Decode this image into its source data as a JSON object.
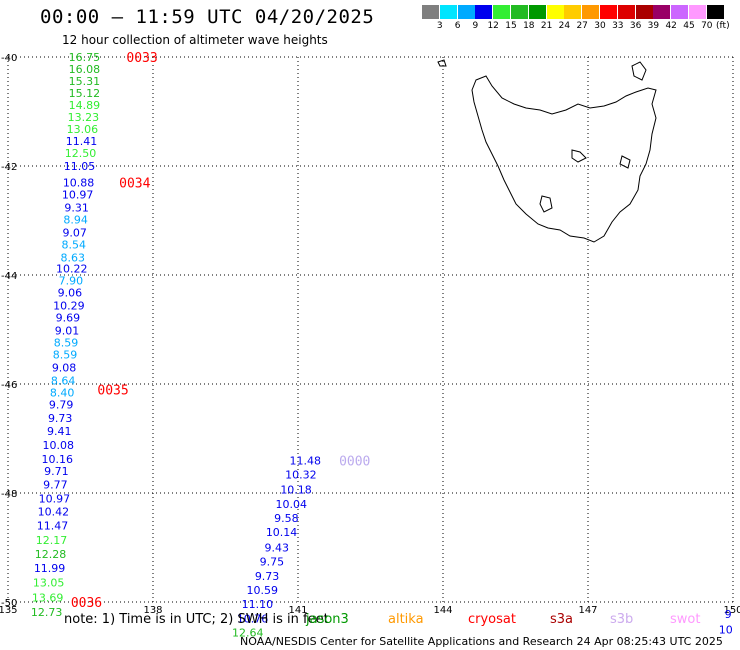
{
  "title": "00:00 – 11:59 UTC 04/20/2025",
  "subtitle": "12 hour collection of altimeter wave heights",
  "colorbar": {
    "unit": "(ft)",
    "ticks": [
      "3",
      "6",
      "9",
      "12",
      "15",
      "18",
      "21",
      "24",
      "27",
      "30",
      "33",
      "36",
      "39",
      "42",
      "45",
      "70"
    ],
    "colors": [
      "#7f7f7f",
      "#00e5ff",
      "#00aaff",
      "#0000ee",
      "#33ee33",
      "#22bb22",
      "#009900",
      "#ffff00",
      "#ffcc00",
      "#ff9900",
      "#ff0000",
      "#dd0000",
      "#aa0000",
      "#990066",
      "#cc66ff",
      "#ff99ff",
      "#000000"
    ]
  },
  "map": {
    "lat_labels": [
      "-40",
      "-42",
      "-44",
      "-46",
      "-48",
      "-50"
    ],
    "lon_labels": [
      "135",
      "138",
      "141",
      "144",
      "147",
      "150"
    ],
    "grid": "dotted",
    "lon_range": [
      135,
      150
    ],
    "lat_range": [
      -50,
      -40
    ]
  },
  "tracks": [
    {
      "passes": [
        {
          "label": "0033",
          "color": "#ff0000",
          "lon": 137.45,
          "lat": -40.0
        },
        {
          "label": "0034",
          "color": "#ff0000",
          "lon": 137.3,
          "lat": -42.3
        },
        {
          "label": "0035",
          "color": "#ff0000",
          "lon": 136.85,
          "lat": -46.1
        },
        {
          "label": "0036",
          "color": "#ff0000",
          "lon": 136.3,
          "lat": -50.0
        }
      ],
      "points": [
        {
          "v": "16.75",
          "c": "#22bb22",
          "lon": 136.58,
          "lat": -40.0
        },
        {
          "v": "16.08",
          "c": "#22bb22",
          "lon": 136.58,
          "lat": -40.22
        },
        {
          "v": "15.31",
          "c": "#22bb22",
          "lon": 136.58,
          "lat": -40.44
        },
        {
          "v": "15.12",
          "c": "#22bb22",
          "lon": 136.58,
          "lat": -40.66
        },
        {
          "v": "14.89",
          "c": "#33ee33",
          "lon": 136.58,
          "lat": -40.88
        },
        {
          "v": "13.23",
          "c": "#33ee33",
          "lon": 136.56,
          "lat": -41.1
        },
        {
          "v": "13.06",
          "c": "#33ee33",
          "lon": 136.54,
          "lat": -41.32
        },
        {
          "v": "11.41",
          "c": "#0000ee",
          "lon": 136.52,
          "lat": -41.54
        },
        {
          "v": "12.50",
          "c": "#33ee33",
          "lon": 136.5,
          "lat": -41.76
        },
        {
          "v": "11.05",
          "c": "#0000ee",
          "lon": 136.48,
          "lat": -42.0
        },
        {
          "v": "10.88",
          "c": "#0000ee",
          "lon": 136.46,
          "lat": -42.3
        },
        {
          "v": "10.97",
          "c": "#0000ee",
          "lon": 136.44,
          "lat": -42.52
        },
        {
          "v": "9.31",
          "c": "#0000ee",
          "lon": 136.42,
          "lat": -42.76
        },
        {
          "v": "8.94",
          "c": "#00aaff",
          "lon": 136.4,
          "lat": -42.98
        },
        {
          "v": "9.07",
          "c": "#0000ee",
          "lon": 136.38,
          "lat": -43.22
        },
        {
          "v": "8.54",
          "c": "#00aaff",
          "lon": 136.36,
          "lat": -43.44
        },
        {
          "v": "8.63",
          "c": "#00aaff",
          "lon": 136.34,
          "lat": -43.68
        },
        {
          "v": "10.22",
          "c": "#0000ee",
          "lon": 136.32,
          "lat": -43.88
        },
        {
          "v": "7.90",
          "c": "#00aaff",
          "lon": 136.3,
          "lat": -44.1
        },
        {
          "v": "9.06",
          "c": "#0000ee",
          "lon": 136.28,
          "lat": -44.32
        },
        {
          "v": "10.29",
          "c": "#0000ee",
          "lon": 136.26,
          "lat": -44.56
        },
        {
          "v": "9.69",
          "c": "#0000ee",
          "lon": 136.24,
          "lat": -44.78
        },
        {
          "v": "9.01",
          "c": "#0000ee",
          "lon": 136.22,
          "lat": -45.02
        },
        {
          "v": "8.59",
          "c": "#00aaff",
          "lon": 136.2,
          "lat": -45.24
        },
        {
          "v": "8.59",
          "c": "#00aaff",
          "lon": 136.18,
          "lat": -45.46
        },
        {
          "v": "9.08",
          "c": "#0000ee",
          "lon": 136.16,
          "lat": -45.7
        },
        {
          "v": "8.64",
          "c": "#00aaff",
          "lon": 136.14,
          "lat": -45.94
        },
        {
          "v": "8.40",
          "c": "#00aaff",
          "lon": 136.12,
          "lat": -46.16
        },
        {
          "v": "9.79",
          "c": "#0000ee",
          "lon": 136.1,
          "lat": -46.38
        },
        {
          "v": "9.73",
          "c": "#0000ee",
          "lon": 136.08,
          "lat": -46.62
        },
        {
          "v": "9.41",
          "c": "#0000ee",
          "lon": 136.06,
          "lat": -46.86
        },
        {
          "v": "10.08",
          "c": "#0000ee",
          "lon": 136.04,
          "lat": -47.12
        },
        {
          "v": "10.16",
          "c": "#0000ee",
          "lon": 136.02,
          "lat": -47.38
        },
        {
          "v": "9.71",
          "c": "#0000ee",
          "lon": 136.0,
          "lat": -47.6
        },
        {
          "v": "9.77",
          "c": "#0000ee",
          "lon": 135.98,
          "lat": -47.84
        },
        {
          "v": "10.97",
          "c": "#0000ee",
          "lon": 135.96,
          "lat": -48.1
        },
        {
          "v": "10.42",
          "c": "#0000ee",
          "lon": 135.94,
          "lat": -48.34
        },
        {
          "v": "11.47",
          "c": "#0000ee",
          "lon": 135.92,
          "lat": -48.6
        },
        {
          "v": "12.17",
          "c": "#33ee33",
          "lon": 135.9,
          "lat": -48.86
        },
        {
          "v": "12.28",
          "c": "#22bb22",
          "lon": 135.88,
          "lat": -49.12
        },
        {
          "v": "11.99",
          "c": "#0000ee",
          "lon": 135.86,
          "lat": -49.38
        },
        {
          "v": "13.05",
          "c": "#33ee33",
          "lon": 135.84,
          "lat": -49.64
        },
        {
          "v": "13.69",
          "c": "#33ee33",
          "lon": 135.82,
          "lat": -49.92
        },
        {
          "v": "12.73",
          "c": "#22bb22",
          "lon": 135.8,
          "lat": -50.18
        }
      ]
    },
    {
      "passes": [
        {
          "label": "0000",
          "color": "#bbaaee",
          "lon": 141.85,
          "lat": -47.4
        }
      ],
      "points": [
        {
          "v": "11.48",
          "c": "#0000ee",
          "lon": 141.15,
          "lat": -47.4
        },
        {
          "v": "10.32",
          "c": "#0000ee",
          "lon": 141.06,
          "lat": -47.66
        },
        {
          "v": "10.18",
          "c": "#0000ee",
          "lon": 140.96,
          "lat": -47.94
        },
        {
          "v": "10.04",
          "c": "#0000ee",
          "lon": 140.86,
          "lat": -48.2
        },
        {
          "v": "9.58",
          "c": "#0000ee",
          "lon": 140.76,
          "lat": -48.46
        },
        {
          "v": "10.14",
          "c": "#0000ee",
          "lon": 140.66,
          "lat": -48.72
        },
        {
          "v": "9.43",
          "c": "#0000ee",
          "lon": 140.56,
          "lat": -49.0
        },
        {
          "v": "9.75",
          "c": "#0000ee",
          "lon": 140.46,
          "lat": -49.26
        },
        {
          "v": "9.73",
          "c": "#0000ee",
          "lon": 140.36,
          "lat": -49.52
        },
        {
          "v": "10.59",
          "c": "#0000ee",
          "lon": 140.26,
          "lat": -49.78
        },
        {
          "v": "11.10",
          "c": "#0000ee",
          "lon": 140.16,
          "lat": -50.04
        },
        {
          "v": "10.76",
          "c": "#0000ee",
          "lon": 140.06,
          "lat": -50.3
        },
        {
          "v": "12.64",
          "c": "#22bb22",
          "lon": 139.96,
          "lat": -50.56
        }
      ]
    },
    {
      "passes": [],
      "points": [
        {
          "v": "9",
          "c": "#0000ee",
          "lon": 149.9,
          "lat": -50.22
        },
        {
          "v": "10",
          "c": "#0000ee",
          "lon": 149.85,
          "lat": -50.5
        }
      ]
    }
  ],
  "note": {
    "text": "note:  1) Time is in UTC; 2) SWH is in feet",
    "satellites": [
      {
        "name": "jason3",
        "color": "#009900"
      },
      {
        "name": "altika",
        "color": "#ff9900"
      },
      {
        "name": "cryosat",
        "color": "#ff0000"
      },
      {
        "name": "s3a",
        "color": "#aa0000"
      },
      {
        "name": "s3b",
        "color": "#ccaaee"
      },
      {
        "name": "swot",
        "color": "#ff99ff"
      }
    ]
  },
  "credit": "NOAA/NESDIS Center for Satellite Applications and Research    24 Apr 08:25:43 UTC 2025"
}
